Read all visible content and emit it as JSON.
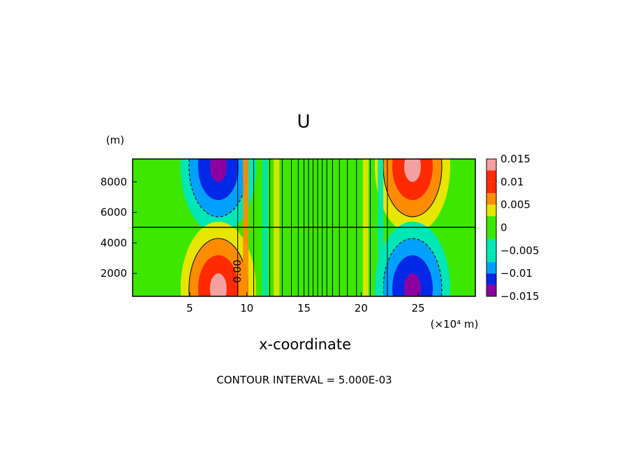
{
  "chart_data": {
    "type": "heatmap",
    "title": "U",
    "xlabel": "x-coordinate",
    "x_units": "(×10⁴ m)",
    "ylabel": "",
    "y_units": "(m)",
    "xlim": [
      0,
      30
    ],
    "ylim": [
      500,
      9500
    ],
    "x_ticks": [
      5,
      10,
      15,
      20,
      25
    ],
    "x_tick_labels": [
      "5",
      "10",
      "15",
      "20",
      "25"
    ],
    "y_ticks": [
      2000,
      4000,
      6000,
      8000
    ],
    "y_tick_labels": [
      "2000",
      "4000",
      "6000",
      "8000"
    ],
    "contour_label": "0.00",
    "contour_interval_text": "CONTOUR INTERVAL = 5.000E-03",
    "colorbar": {
      "levels": [
        0.015,
        0.01,
        0.005,
        0,
        -0.005,
        -0.01,
        -0.015
      ],
      "tick_labels": [
        "0.015",
        "0.01",
        "0.005",
        "0",
        "−0.005",
        "−0.01",
        "−0.015"
      ],
      "colors": [
        "#f4a0a0",
        "#ff2a00",
        "#ff8c00",
        "#e6e600",
        "#3ce800",
        "#00e6b4",
        "#00a0ff",
        "#0028e6",
        "#8c00a0"
      ]
    },
    "features": [
      {
        "name": "upper-left-negative-cell",
        "x": 7.5,
        "y": 9000,
        "min": -0.015
      },
      {
        "name": "lower-left-positive-cell",
        "x": 7.5,
        "y": 1000,
        "max": 0.015
      },
      {
        "name": "upper-right-positive-cell",
        "x": 24.5,
        "y": 9000,
        "max": 0.015
      },
      {
        "name": "lower-right-negative-cell",
        "x": 24.5,
        "y": 1000,
        "min": -0.015
      }
    ],
    "grid": false,
    "legend": "colorbar-right"
  }
}
